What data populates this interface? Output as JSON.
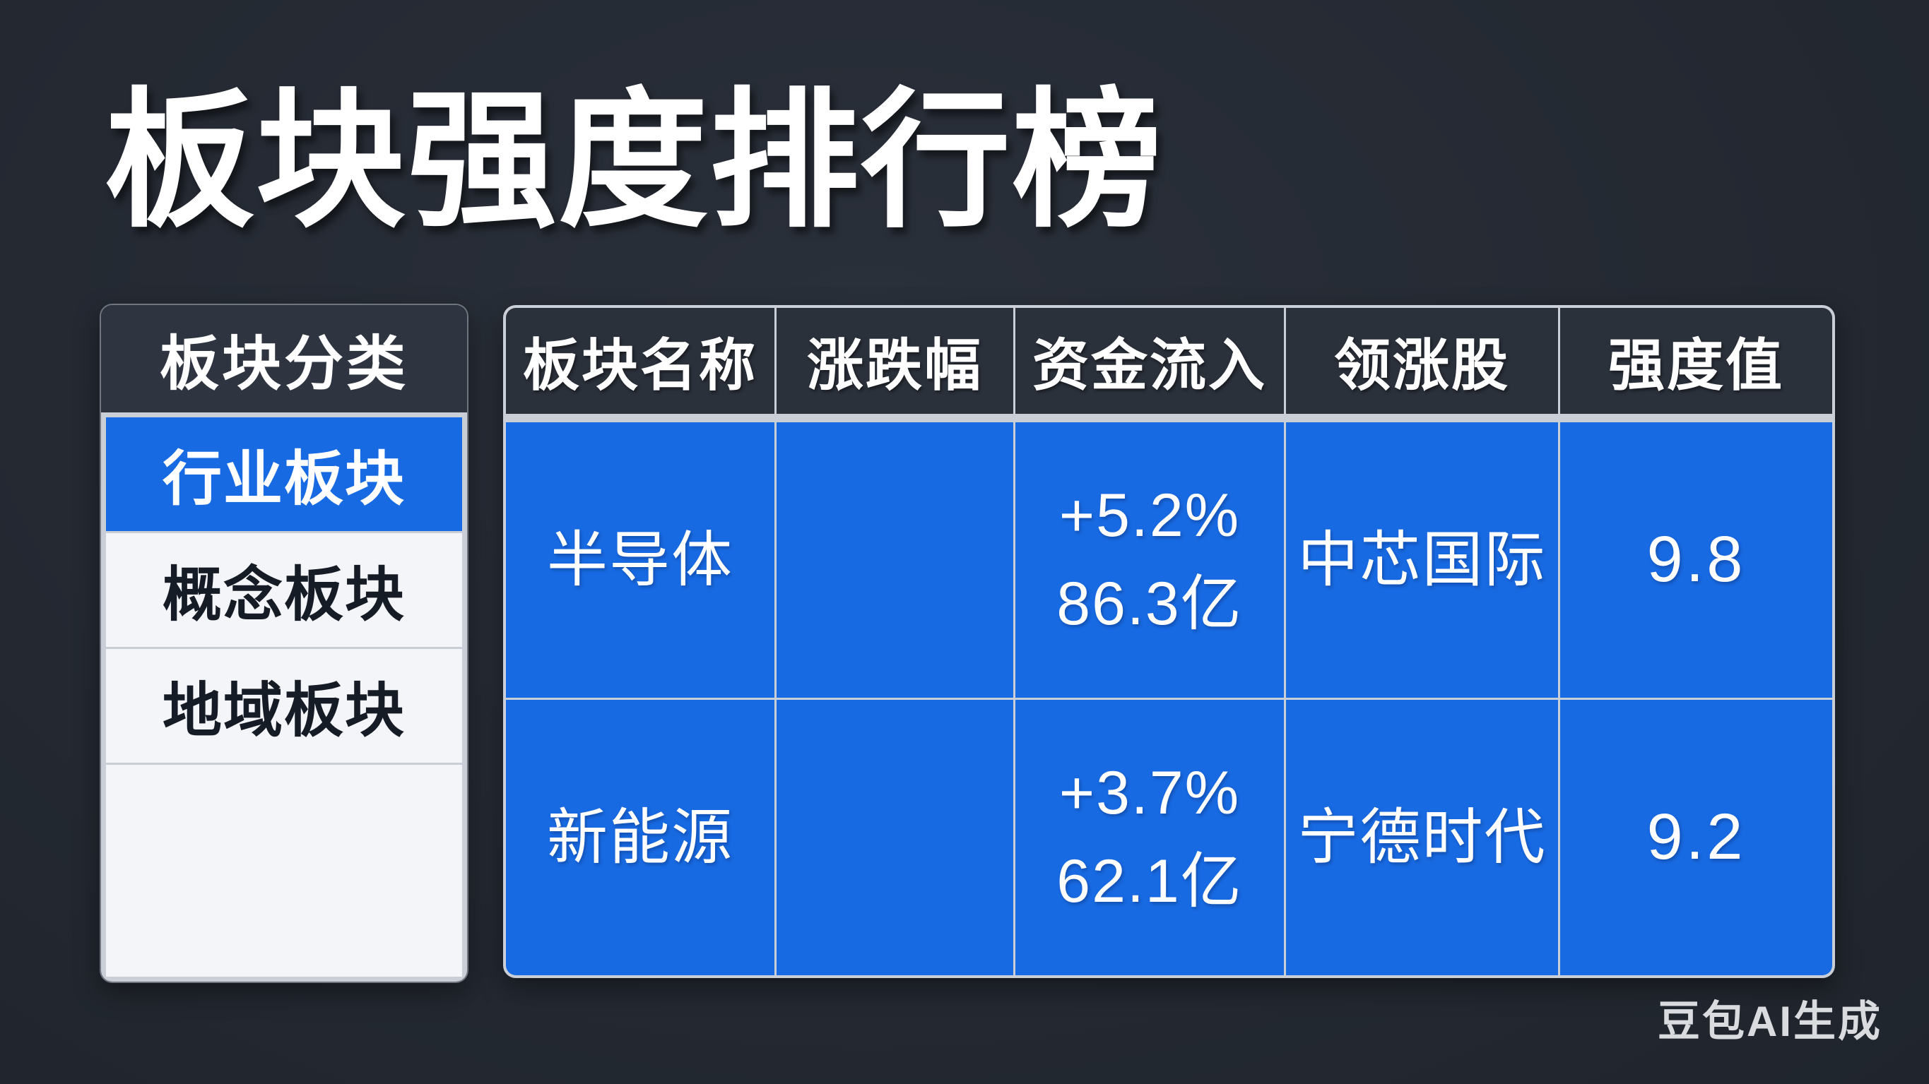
{
  "app": {
    "title": "板块强度排行榜",
    "watermark": "豆包AI生成"
  },
  "colors": {
    "background": "#242932",
    "panel_dark": "#2b313b",
    "accent_blue": "#186ae3",
    "divider_light": "#c9ced7",
    "row_light": "#f3f5f9"
  },
  "sidebar": {
    "header": "板块分类",
    "items": [
      {
        "label": "行业板块",
        "selected": true
      },
      {
        "label": "概念板块",
        "selected": false
      },
      {
        "label": "地域板块",
        "selected": false
      }
    ]
  },
  "table": {
    "columns": [
      "板块名称",
      "涨跌幅",
      "资金流入",
      "领涨股",
      "强度值"
    ],
    "rows": [
      {
        "name": "半导体",
        "change": "",
        "inflow_pct": "+5.2%",
        "inflow_amt": "86.3亿",
        "leader": "中芯国际",
        "strength": "9.8"
      },
      {
        "name": "新能源",
        "change": "",
        "inflow_pct": "+3.7%",
        "inflow_amt": "62.1亿",
        "leader": "宁德时代",
        "strength": "9.2"
      }
    ]
  }
}
